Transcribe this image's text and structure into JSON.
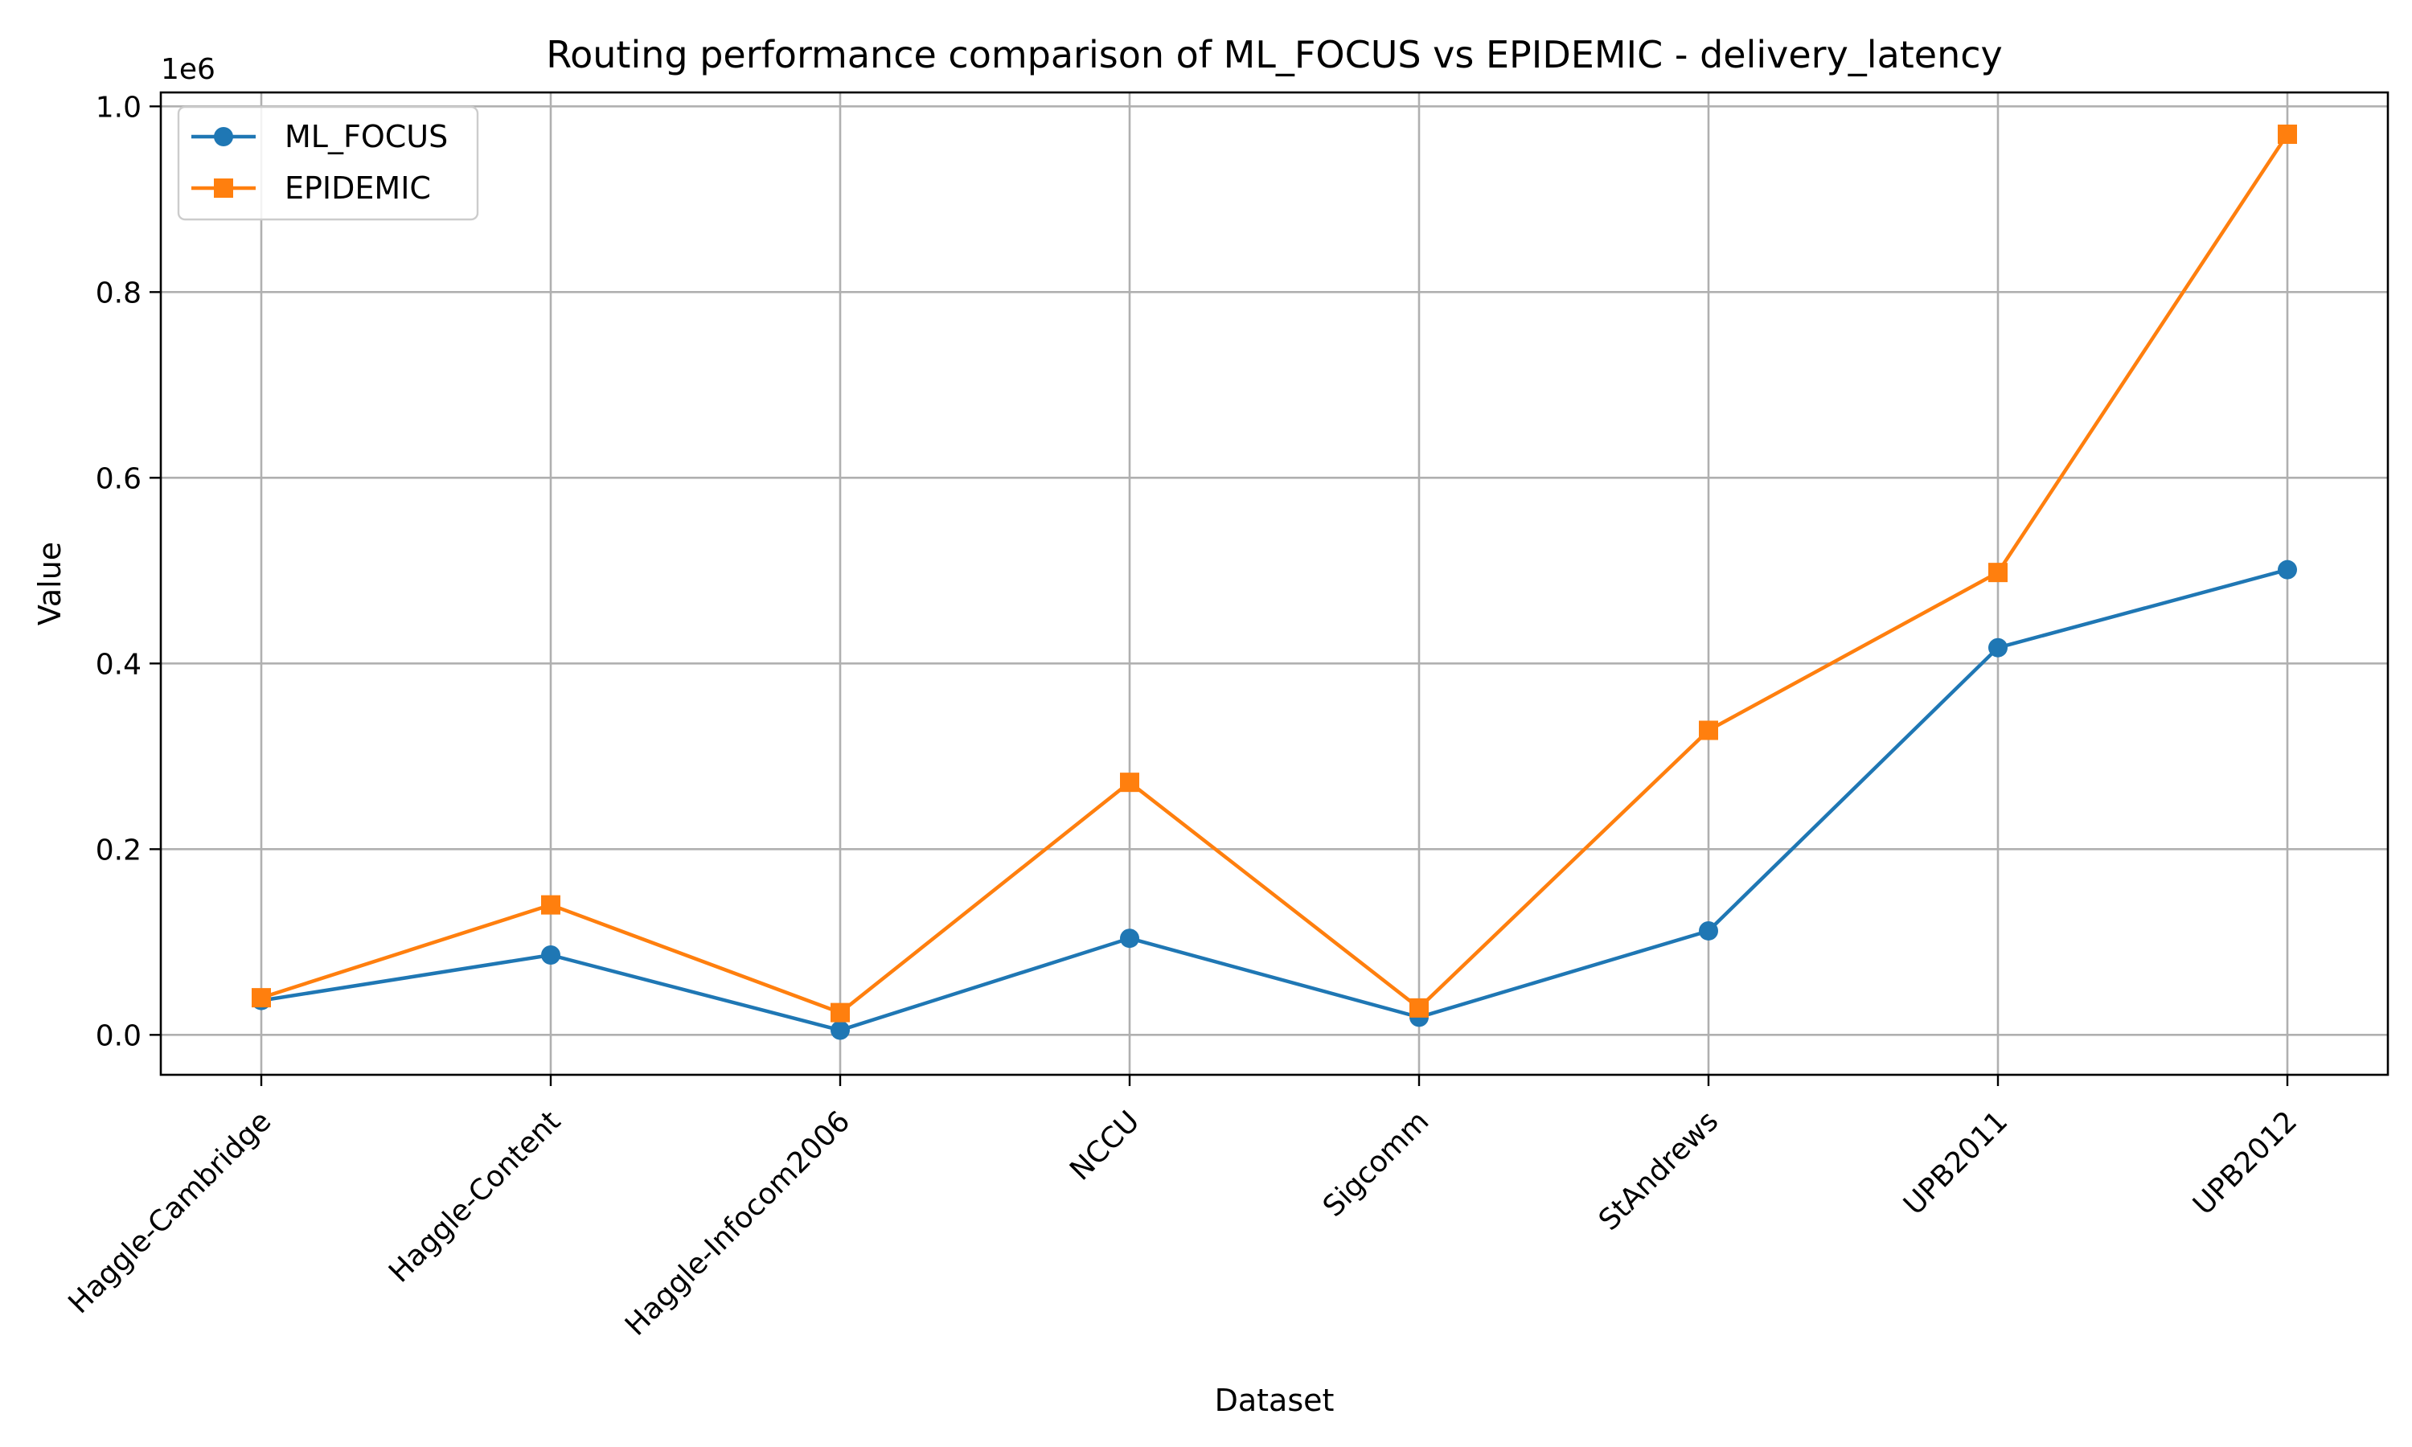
{
  "chart_data": {
    "type": "line",
    "title": "Routing performance comparison of ML_FOCUS vs EPIDEMIC - delivery_latency",
    "xlabel": "Dataset",
    "ylabel": "Value",
    "y_offset_label": "1e6",
    "categories": [
      "Haggle-Cambridge",
      "Haggle-Content",
      "Haggle-Infocom2006",
      "NCCU",
      "Sigcomm",
      "StAndrews",
      "UPB2011",
      "UPB2012"
    ],
    "y_ticks": [
      0.0,
      0.2,
      0.4,
      0.6,
      0.8,
      1.0
    ],
    "y_tick_labels": [
      "0.0",
      "0.2",
      "0.4",
      "0.6",
      "0.8",
      "1.0"
    ],
    "ylim": [
      -0.043,
      1.015
    ],
    "y_scale": 1000000,
    "grid": true,
    "legend_position": "top-left",
    "series": [
      {
        "name": "ML_FOCUS",
        "color": "#1f77b4",
        "marker": "circle",
        "values": [
          37000,
          86000,
          5000,
          104000,
          19000,
          112000,
          417000,
          501000
        ]
      },
      {
        "name": "EPIDEMIC",
        "color": "#ff7f0e",
        "marker": "square",
        "values": [
          40000,
          140000,
          24000,
          272000,
          29000,
          328000,
          498000,
          970000
        ]
      }
    ]
  }
}
